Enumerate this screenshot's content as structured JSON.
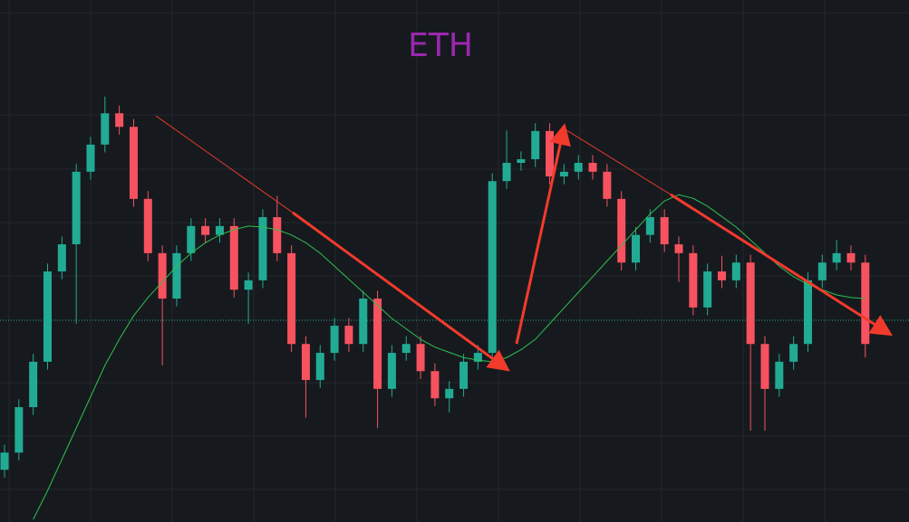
{
  "chart_data": {
    "type": "candlestick",
    "title": "ETH",
    "title_color": "#9c27b0",
    "up_color": "#22ab94",
    "down_color": "#f7525f",
    "ma_color": "#2fbf4f",
    "ylim": [
      0,
      100
    ],
    "open": [
      10.0,
      13.3,
      22.0,
      30.7,
      48.0,
      53.2,
      67.1,
      72.3,
      78.3,
      75.7,
      61.9,
      51.5,
      42.8,
      51.5,
      56.7,
      55.0,
      56.7,
      44.5,
      46.3,
      58.4,
      51.5,
      34.1,
      27.2,
      32.4,
      37.6,
      34.1,
      42.8,
      25.5,
      32.4,
      34.1,
      28.9,
      23.7,
      25.5,
      30.7,
      32.4,
      65.3,
      68.8,
      69.5,
      74.9,
      66.2,
      67.1,
      68.8,
      67.1,
      61.9,
      49.7,
      55.0,
      58.4,
      53.2,
      51.5,
      41.1,
      48.0,
      46.3,
      49.7,
      34.1,
      25.5,
      30.7,
      34.1,
      46.3,
      49.7,
      51.5,
      49.7
    ],
    "high": [
      14.8,
      23.5,
      32.2,
      49.5,
      54.7,
      68.6,
      73.8,
      81.5,
      79.8,
      77.2,
      63.4,
      53.0,
      53.0,
      58.2,
      58.2,
      58.2,
      58.2,
      47.8,
      59.9,
      62.5,
      53.0,
      35.6,
      33.9,
      39.1,
      39.1,
      44.3,
      44.3,
      33.9,
      35.6,
      35.6,
      30.4,
      27.0,
      32.2,
      33.9,
      66.8,
      75.0,
      71.0,
      76.4,
      76.4,
      68.6,
      70.3,
      70.3,
      68.6,
      63.4,
      56.5,
      59.9,
      59.9,
      54.7,
      53.0,
      49.5,
      51.0,
      51.2,
      51.2,
      35.6,
      32.2,
      35.6,
      47.8,
      51.2,
      54.0,
      53.0,
      51.2
    ],
    "low": [
      8.5,
      11.8,
      20.5,
      29.2,
      46.5,
      38.0,
      65.6,
      70.8,
      74.2,
      60.4,
      50.0,
      30.0,
      41.3,
      50.0,
      53.5,
      53.5,
      43.0,
      38.0,
      44.8,
      50.0,
      32.6,
      20.0,
      25.7,
      30.9,
      32.6,
      32.6,
      18.0,
      24.0,
      30.9,
      27.4,
      22.2,
      21.0,
      24.0,
      29.2,
      30.9,
      63.8,
      67.3,
      68.0,
      64.7,
      64.7,
      65.6,
      65.6,
      60.4,
      48.2,
      48.2,
      53.5,
      51.7,
      46.0,
      39.6,
      39.6,
      44.8,
      44.8,
      17.5,
      17.5,
      24.0,
      29.2,
      32.6,
      44.8,
      48.2,
      48.2,
      31.5
    ],
    "close": [
      13.3,
      22.0,
      30.7,
      48.0,
      53.2,
      67.1,
      72.3,
      78.3,
      75.7,
      61.9,
      51.5,
      42.8,
      51.5,
      56.7,
      55.0,
      56.7,
      44.5,
      46.3,
      58.4,
      51.5,
      34.1,
      27.2,
      32.4,
      37.6,
      34.1,
      42.8,
      25.5,
      32.4,
      34.1,
      28.9,
      23.7,
      25.5,
      30.7,
      32.4,
      65.3,
      68.8,
      69.5,
      74.9,
      66.2,
      67.1,
      68.8,
      67.1,
      61.9,
      49.7,
      55.0,
      58.4,
      53.2,
      51.5,
      41.1,
      48.0,
      46.3,
      49.7,
      34.1,
      25.5,
      30.7,
      34.1,
      46.3,
      49.7,
      51.5,
      49.7,
      34.1
    ],
    "ma": [
      null,
      null,
      0.5,
      6,
      12,
      18,
      24,
      30,
      35,
      39.5,
      43,
      46,
      49,
      51.5,
      53.5,
      55,
      56,
      56.7,
      56.5,
      56,
      55,
      53.5,
      51.5,
      49,
      46.5,
      44,
      41.5,
      39,
      37,
      35,
      33.5,
      32.5,
      31.5,
      31,
      30.7,
      31.5,
      33,
      35,
      38,
      41,
      44,
      47,
      50,
      53,
      56,
      59,
      61.5,
      62.7,
      62,
      60.5,
      58.5,
      56.5,
      54,
      51.5,
      49,
      47,
      45.5,
      44.5,
      43.5,
      43,
      42.8
    ]
  }
}
